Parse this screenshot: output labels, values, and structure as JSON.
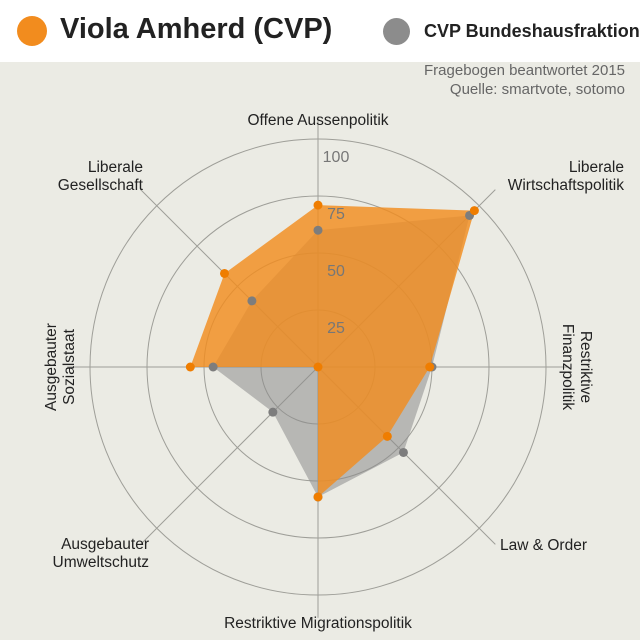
{
  "legend": {
    "primary": {
      "label": "Viola Amherd (CVP)",
      "color": "#f28c1e"
    },
    "reference": {
      "label": "CVP Bundeshausfraktion",
      "color": "#8c8c8c"
    }
  },
  "notes": {
    "line1": "Fragebogen beantwortet 2015",
    "line2": "Quelle: smartvote, sotomo"
  },
  "chart_data": {
    "type": "radar",
    "axes": [
      [
        "Offene Aussenpolitik"
      ],
      [
        "Liberale",
        "Wirtschaftspolitik"
      ],
      [
        "Restriktive",
        "Finanzpolitik"
      ],
      [
        "Law & Order"
      ],
      [
        "Restriktive Migrationspolitik"
      ],
      [
        "Ausgebauter",
        "Umweltschutz"
      ],
      [
        "Ausgebauter",
        "Sozialstaat"
      ],
      [
        "Liberale",
        "Gesellschaft"
      ]
    ],
    "ticks": [
      "25",
      "50",
      "75",
      "100"
    ],
    "range": [
      0,
      100
    ],
    "series": [
      {
        "name": "Viola Amherd (CVP)",
        "values": [
          71,
          97,
          49,
          43,
          57,
          0,
          56,
          58
        ]
      },
      {
        "name": "CVP Bundeshausfraktion",
        "values": [
          60,
          94,
          50,
          53,
          57,
          28,
          46,
          41
        ]
      }
    ],
    "colors": {
      "primary": "#f28c1e",
      "reference": "#8c8c8c"
    },
    "grid": true
  }
}
